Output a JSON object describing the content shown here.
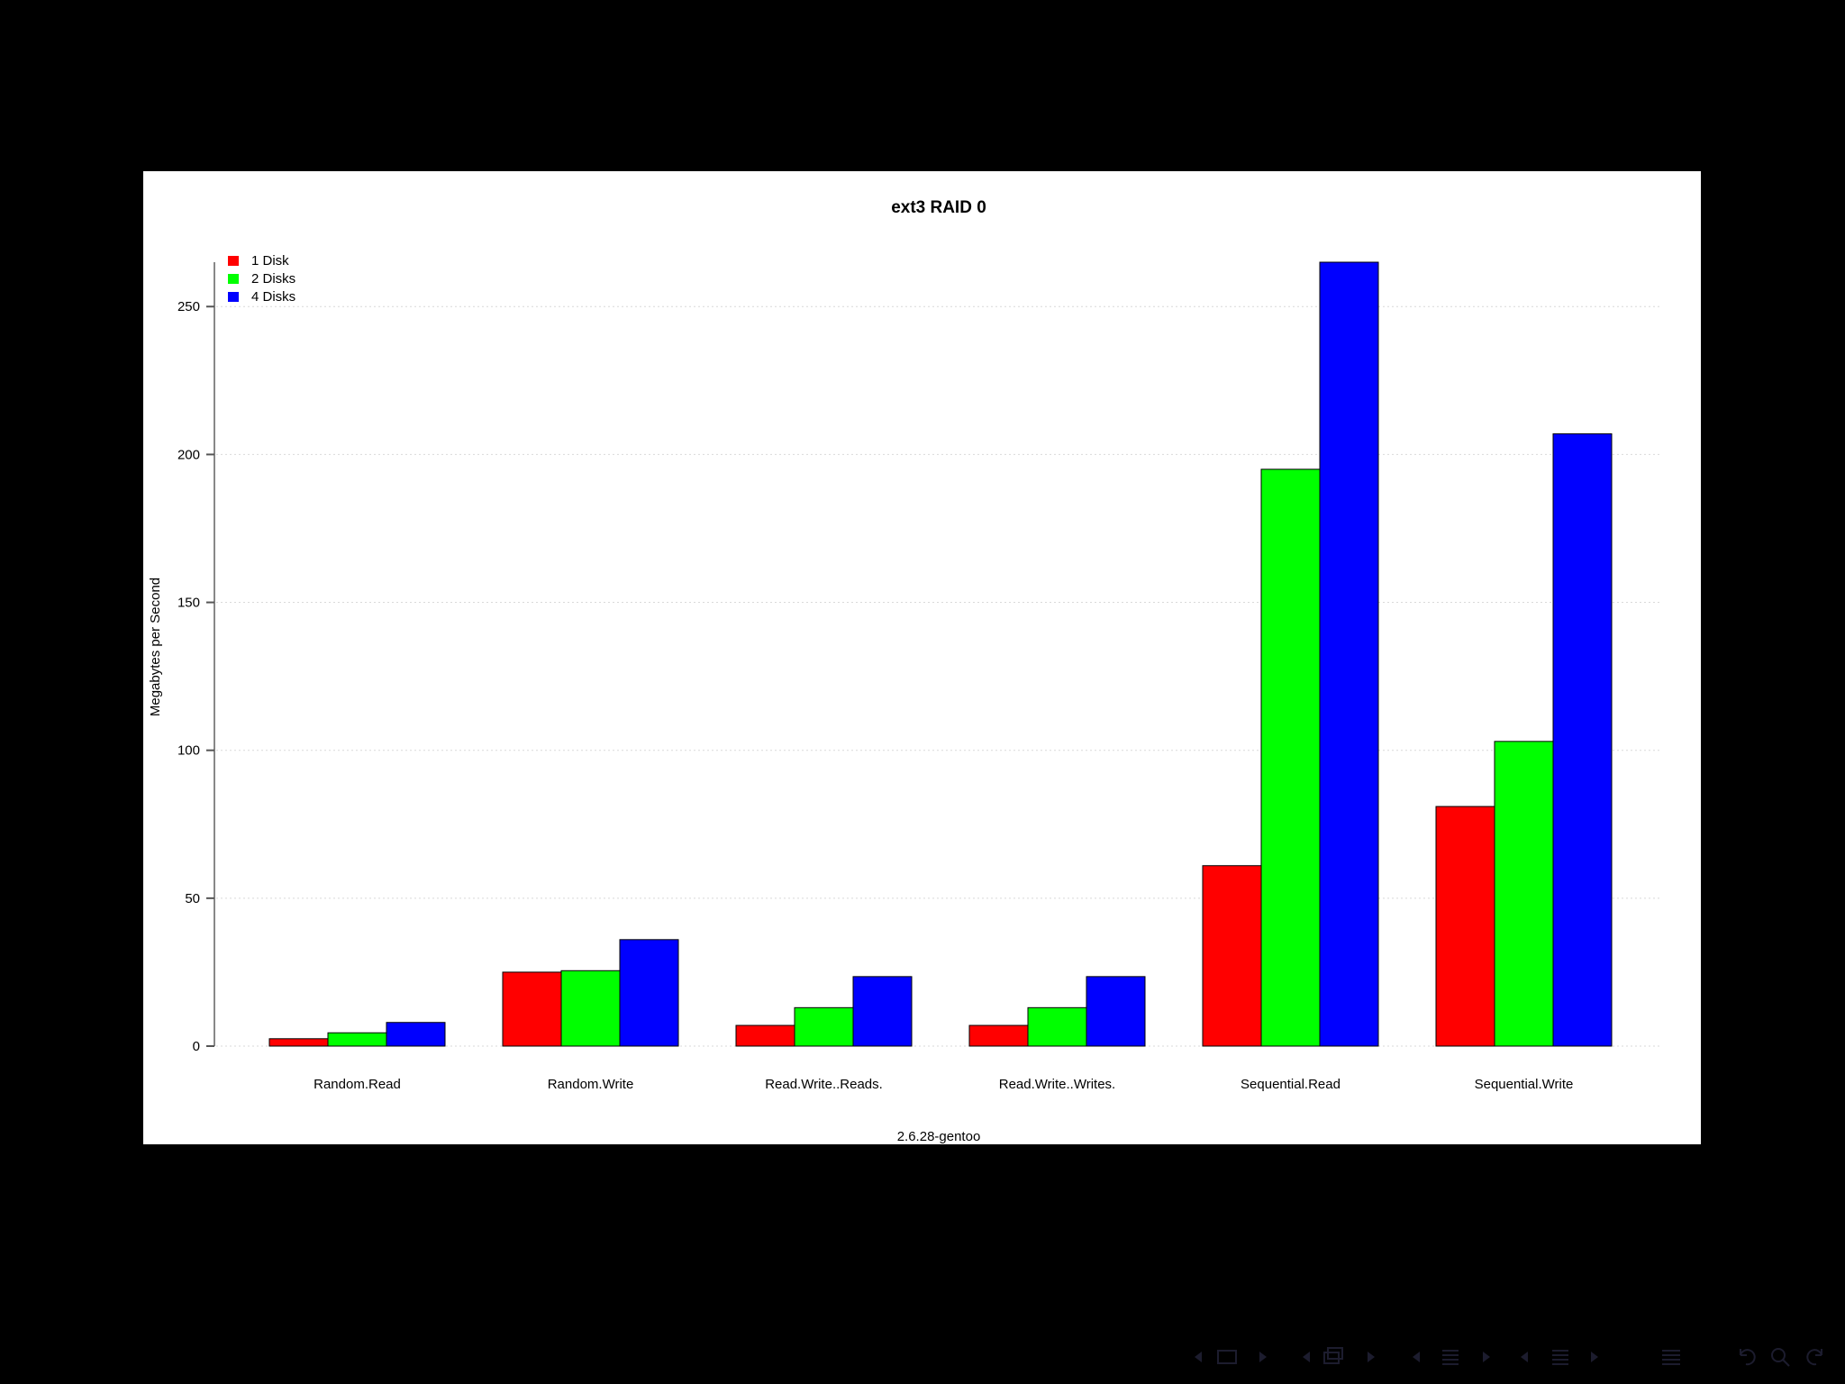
{
  "chart_data": {
    "type": "bar",
    "title": "ext3 RAID 0",
    "xlabel": "2.6.28-gentoo",
    "ylabel": "Megabytes per Second",
    "ylim": [
      0,
      265
    ],
    "yticks": [
      0,
      50,
      100,
      150,
      200,
      250
    ],
    "grid": true,
    "legend_position": "top-left",
    "categories": [
      "Random.Read",
      "Random.Write",
      "Read.Write..Reads.",
      "Read.Write..Writes.",
      "Sequential.Read",
      "Sequential.Write"
    ],
    "series": [
      {
        "name": "1 Disk",
        "color": "#ff0000",
        "values": [
          2.5,
          25,
          7,
          7,
          61,
          81
        ]
      },
      {
        "name": "2 Disks",
        "color": "#00ff00",
        "values": [
          4.5,
          25.5,
          13,
          13,
          195,
          103
        ]
      },
      {
        "name": "4 Disks",
        "color": "#0000ff",
        "values": [
          8,
          36,
          23.5,
          23.5,
          265,
          207
        ]
      }
    ]
  },
  "colors": {
    "background": "#000000",
    "plot_background": "#ffffff",
    "gridline": "#d9d9d9",
    "nav_icons": "#1c1c2e"
  },
  "navigation": {
    "icons": [
      "arrow-left-icon",
      "frame-icon",
      "arrow-right-icon",
      "arrow-left-icon",
      "subsection-icon",
      "arrow-right-icon",
      "arrow-left-icon",
      "section-icon",
      "arrow-right-icon",
      "arrow-left-icon",
      "section-icon",
      "arrow-right-icon",
      "list-icon",
      "undo-icon",
      "search-icon",
      "redo-icon"
    ]
  }
}
